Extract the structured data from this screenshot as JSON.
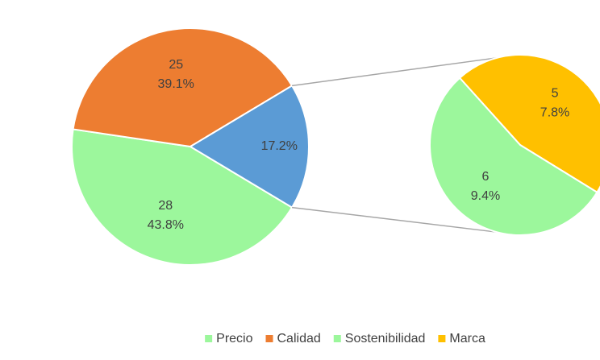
{
  "chart_data": {
    "type": "pie",
    "categories": [
      "Precio",
      "Calidad",
      "Sostenibilidad",
      "Marca"
    ],
    "values": [
      28,
      25,
      6,
      5
    ],
    "percents": [
      {
        "value": 43.8,
        "label": "43.8%"
      },
      {
        "value": 39.1,
        "label": "39.1%"
      },
      {
        "value": 9.4,
        "label": "9.4%"
      },
      {
        "value": 7.8,
        "label": "7.8%"
      }
    ],
    "colors": [
      "#9cf79c",
      "#ed7d31",
      "#9cf79c",
      "#ffc000"
    ],
    "secondary": [
      false,
      false,
      true,
      true
    ],
    "other": {
      "percent": {
        "value": 17.2,
        "label": "17.2%"
      },
      "color": "#5b9bd5"
    },
    "legend": "bottom"
  }
}
